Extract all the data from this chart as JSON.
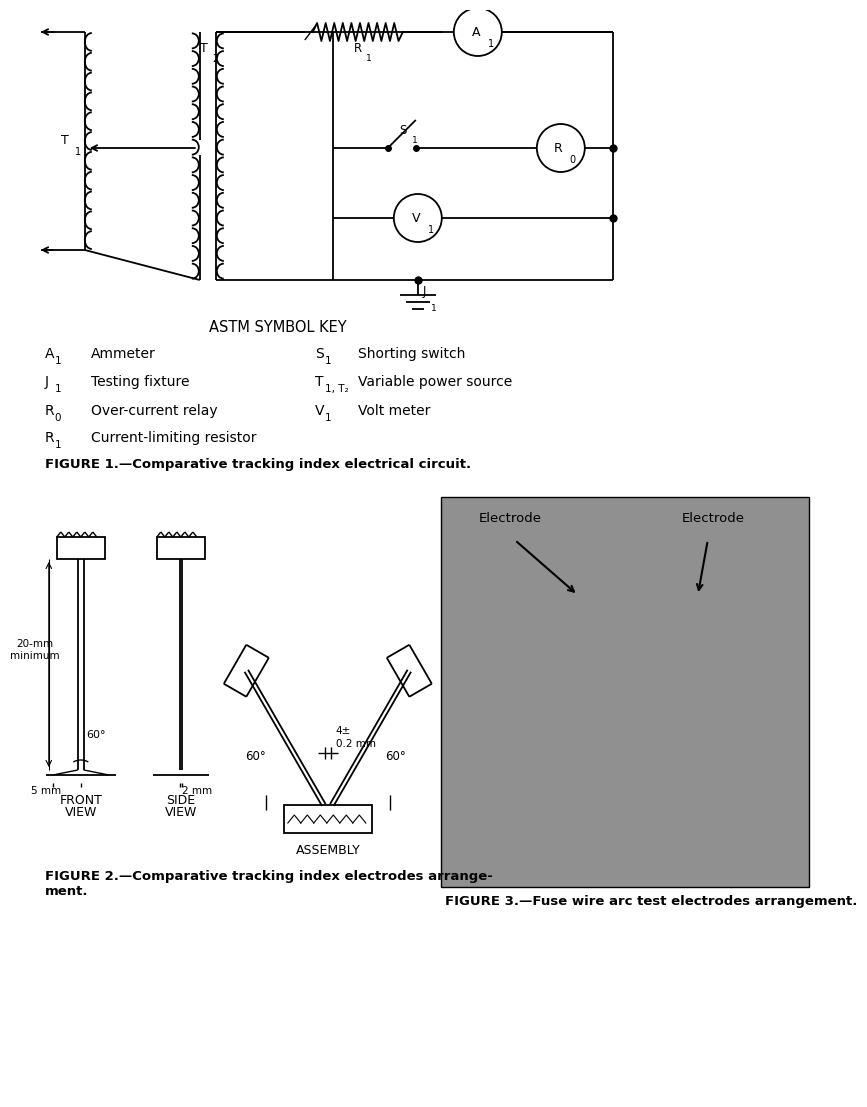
{
  "background_color": "#ffffff",
  "fig_width": 8.0,
  "fig_height": 10.87,
  "symbol_key_title": "ASTM SYMBOL KEY",
  "legend_left": [
    {
      "sym_main": "A",
      "sym_sub": "1",
      "desc": "Ammeter"
    },
    {
      "sym_main": "J",
      "sym_sub": "1",
      "desc": "Testing fixture"
    },
    {
      "sym_main": "R",
      "sym_sub": "0",
      "desc": "Over-current relay"
    },
    {
      "sym_main": "R",
      "sym_sub": "1",
      "desc": "Current-limiting resistor"
    }
  ],
  "legend_right": [
    {
      "sym_main": "S",
      "sym_sub": "1",
      "desc": "Shorting switch"
    },
    {
      "sym_main": "T",
      "sym_sub": "1, T₂",
      "desc": "Variable power source"
    },
    {
      "sym_main": "V",
      "sym_sub": "1",
      "desc": "Volt meter"
    }
  ],
  "fig1_caption": "FIGURE 1.—Comparative tracking index electrical circuit.",
  "fig2_caption_line1": "FIGURE 2.—Comparative tracking index electrodes arrange-",
  "fig2_caption_line2": "ment.",
  "fig3_caption": "FIGURE 3.—Fuse wire arc test electrodes arrangement.",
  "electrode_label_left": "Electrode",
  "electrode_label_right": "Electrode",
  "lc": "#000000",
  "tc": "#000000"
}
